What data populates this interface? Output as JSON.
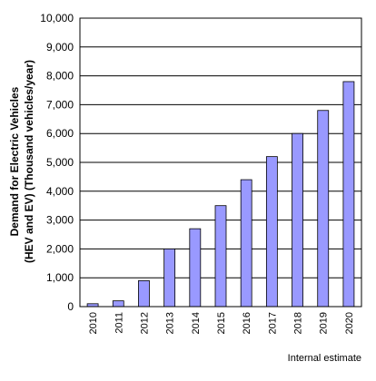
{
  "chart_data": {
    "type": "bar",
    "categories": [
      "2010",
      "2011",
      "2012",
      "2013",
      "2014",
      "2015",
      "2016",
      "2017",
      "2018",
      "2019",
      "2020"
    ],
    "values": [
      100,
      200,
      900,
      2000,
      2700,
      3500,
      4400,
      5200,
      6000,
      6800,
      7800
    ],
    "ylim": [
      0,
      10000
    ],
    "yticks": [
      "0",
      "1,000",
      "2,000",
      "3,000",
      "4,000",
      "5,000",
      "6,000",
      "7,000",
      "8,000",
      "9,000",
      "10,000"
    ],
    "ylabel_line1": "Demand for Electric Vehicles",
    "ylabel_line2": "(HEV and EV) (Thousand vehicles/year)",
    "xlabel": "",
    "title": "",
    "grid": true,
    "legend": "none",
    "bar_color": "#9999ff",
    "note": "Internal estimate"
  }
}
